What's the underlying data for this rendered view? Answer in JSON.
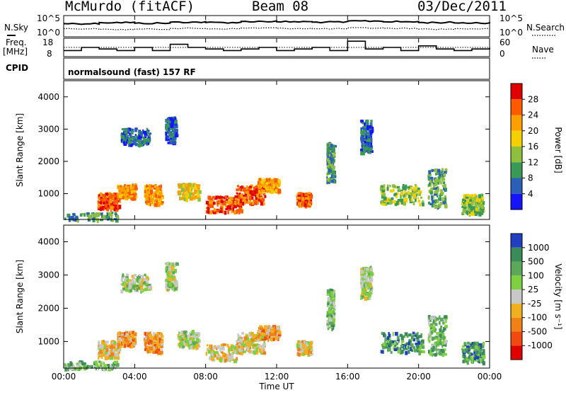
{
  "header": {
    "station": "McMurdo (fitACF)",
    "beam": "Beam 08",
    "date": "03/Dec/2011"
  },
  "params": {
    "nsky_label": "N.Sky",
    "nsky_ticks": [
      "10^5",
      "10^0"
    ],
    "nsearch_label": "N.Search",
    "nsearch_ticks": [
      "10^5",
      "10^0"
    ],
    "freq_label": "Freq.",
    "freq_unit": "[MHz]",
    "freq_ticks": [
      "18",
      "8"
    ],
    "nave_label": "Nave",
    "nave_ticks": [
      "60",
      "0"
    ],
    "cpid_label": "CPID",
    "cpid_value": "normalsound (fast) 157 RF"
  },
  "axes": {
    "xlabel": "Time UT",
    "ylabel": "Slant Range [km]",
    "x_ticks": [
      "00:00",
      "04:00",
      "08:00",
      "12:00",
      "16:00",
      "20:00",
      "00:00"
    ],
    "y_ticks": [
      "1000",
      "2000",
      "3000",
      "4000"
    ]
  },
  "colorbars": {
    "power": {
      "label": "Power [dB]",
      "ticks": [
        "28",
        "24",
        "20",
        "16",
        "12",
        "8",
        "4"
      ],
      "colors": [
        "#e00000",
        "#ff5a00",
        "#ffa000",
        "#f5d000",
        "#8fbf3f",
        "#3a9a55",
        "#2c5fb8",
        "#1414ff"
      ]
    },
    "velocity": {
      "label": "Velocity [m s⁻¹]",
      "ticks": [
        "1000",
        "500",
        "100",
        "25",
        "-25",
        "-100",
        "-500",
        "-1000"
      ],
      "colors": [
        "#2040c0",
        "#3a8a5a",
        "#5ca85a",
        "#7fd040",
        "#c8c8c8",
        "#f0b020",
        "#f08018",
        "#f04a10",
        "#e00000"
      ]
    }
  },
  "chart_data": [
    {
      "type": "line",
      "panel": "N.Sky / N.Search",
      "x": [
        "00:00",
        "02:00",
        "04:00",
        "06:00",
        "08:00",
        "10:00",
        "12:00",
        "14:00",
        "16:00",
        "18:00",
        "20:00",
        "22:00",
        "24:00"
      ],
      "series": [
        {
          "name": "N.Sky",
          "values": [
            3.2,
            3.5,
            3.3,
            3.6,
            3.5,
            3.8,
            3.7,
            3.6,
            3.9,
            3.7,
            3.5,
            3.4,
            3.6
          ]
        },
        {
          "name": "N.Search",
          "values": [
            1.8,
            1.6,
            1.7,
            1.9,
            1.8,
            2.0,
            1.9,
            1.8,
            2.0,
            1.9,
            1.7,
            1.8,
            1.9
          ]
        }
      ],
      "ylim": [
        0,
        5
      ],
      "yscale": "log"
    },
    {
      "type": "line",
      "panel": "Freq. / Nave",
      "x": [
        "00:00",
        "01:00",
        "02:00",
        "03:00",
        "04:00",
        "05:00",
        "06:00",
        "07:00",
        "08:00",
        "09:00",
        "10:00",
        "11:00",
        "12:00",
        "13:00",
        "14:00",
        "15:00",
        "16:00",
        "17:00",
        "18:00",
        "19:00",
        "20:00",
        "21:00",
        "22:00",
        "23:00",
        "24:00"
      ],
      "series": [
        {
          "name": "Freq.",
          "values": [
            11,
            13,
            12,
            11,
            13,
            11,
            15,
            13,
            12,
            11,
            12,
            13,
            11,
            12,
            13,
            11,
            17,
            12,
            13,
            11,
            14,
            12,
            11,
            12,
            13
          ]
        },
        {
          "name": "Nave",
          "values": [
            30,
            30,
            30,
            30,
            30,
            30,
            30,
            30,
            30,
            30,
            30,
            30,
            30,
            30,
            30,
            30,
            30,
            30,
            30,
            30,
            30,
            30,
            30,
            30,
            30
          ]
        }
      ],
      "ylim": [
        8,
        18
      ]
    },
    {
      "type": "heatmap",
      "panel": "Power",
      "xlabel": "Time UT",
      "ylabel": "Slant Range [km]",
      "xlim": [
        0,
        24
      ],
      "ylim": [
        200,
        4500
      ],
      "colorbar": "Power [dB]",
      "zlim": [
        0,
        30
      ]
    },
    {
      "type": "heatmap",
      "panel": "Velocity",
      "xlabel": "Time UT",
      "ylabel": "Slant Range [km]",
      "xlim": [
        0,
        24
      ],
      "ylim": [
        200,
        4500
      ],
      "colorbar": "Velocity [m s⁻¹]",
      "zlim": [
        -1000,
        1000
      ]
    }
  ]
}
